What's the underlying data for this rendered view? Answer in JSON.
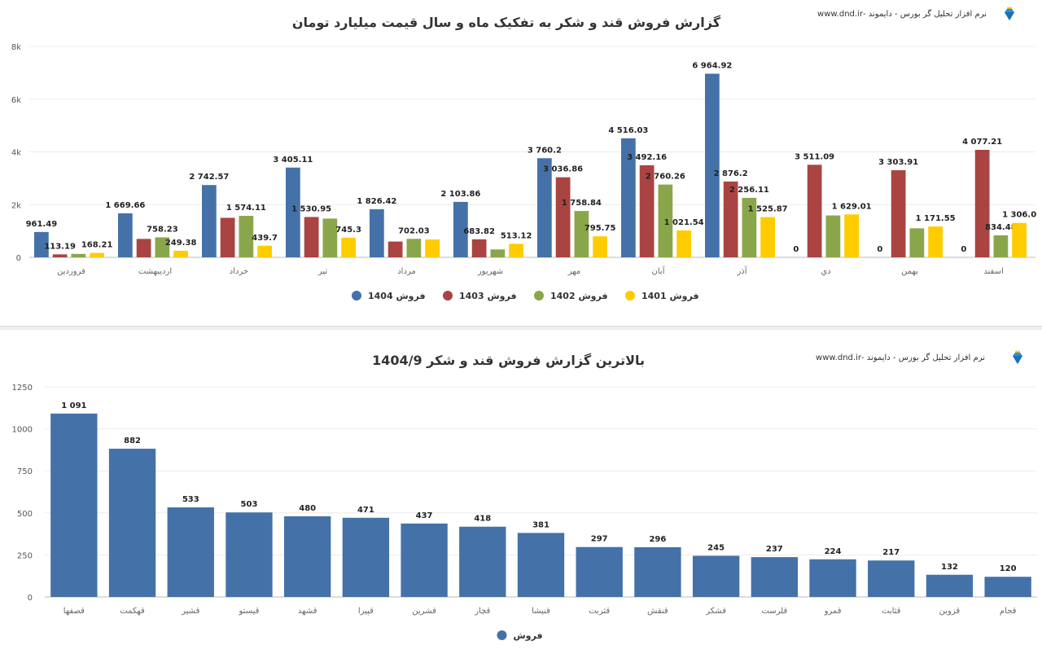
{
  "top": {
    "brand_text": "نرم افزار تحلیل گر بورس - دایموند -www.dnd.ir",
    "chart_data": {
      "type": "bar",
      "title": "گزارش فروش قند و شکر به تفکیک ماه و سال قیمت میلیارد تومان",
      "xlabel": "",
      "ylabel": "",
      "ylim": [
        0,
        8000
      ],
      "yticks": [
        "0",
        "2k",
        "4k",
        "6k",
        "8k"
      ],
      "grid": true,
      "legend_position": "bottom",
      "categories": [
        "فروردین",
        "اردیبهشت",
        "خرداد",
        "تیر",
        "مرداد",
        "شهریور",
        "مهر",
        "آبان",
        "آذر",
        "دي",
        "بهمن",
        "اسفند"
      ],
      "series": [
        {
          "name": "فروش 1404",
          "color": "#4472a8",
          "values": [
            961.49,
            1669.66,
            2742.57,
            3405.11,
            1826.42,
            2103.86,
            3760.2,
            4516.03,
            6964.92,
            0,
            0,
            0
          ],
          "data_labels": [
            "961.49",
            "1 669.66",
            "2 742.57",
            "3 405.11",
            "1 826.42",
            "2 103.86",
            "3 760.2",
            "4 516.03",
            "6 964.92",
            "0",
            "0",
            "0"
          ]
        },
        {
          "name": "فروش 1403",
          "color": "#a94442",
          "values": [
            113.19,
            700,
            1500,
            1530.95,
            600,
            683.82,
            3036.86,
            3492.16,
            2876.2,
            3511.09,
            3303.91,
            4077.21
          ],
          "data_labels": [
            "113.19",
            null,
            null,
            "1 530.95",
            null,
            "683.82",
            "3 036.86",
            "3 492.16",
            "2 876.2",
            "3 511.09",
            "3 303.91",
            "4 077.21"
          ]
        },
        {
          "name": "فروش 1402",
          "color": "#8aa64b",
          "values": [
            130,
            758.23,
            1574.11,
            1470,
            702.03,
            300,
            1758.84,
            2760.26,
            2256.11,
            1590,
            1100,
            834.48
          ],
          "data_labels": [
            null,
            "758.23",
            "1 574.11",
            null,
            "702.03",
            null,
            "1 758.84",
            "2 760.26",
            "2 256.11",
            null,
            null,
            "834.48"
          ]
        },
        {
          "name": "فروش 1401",
          "color": "#ffcc00",
          "values": [
            168.21,
            249.38,
            439.7,
            745.3,
            680,
            513.12,
            795.75,
            1021.54,
            1525.87,
            1629.01,
            1171.55,
            1306.0
          ],
          "data_labels": [
            "168.21",
            "249.38",
            "439.7",
            "745.3",
            null,
            "513.12",
            "795.75",
            "1 021.54",
            "1 525.87",
            "1 629.01",
            "1 171.55",
            "1 306.0"
          ]
        }
      ]
    }
  },
  "bottom": {
    "brand_text": "نرم افزار تحلیل گر بورس - دایموند -www.dnd.ir",
    "chart_data": {
      "type": "bar",
      "title": "بالاترین گزارش فروش قند و شکر 1404/9",
      "xlabel": "",
      "ylabel": "",
      "ylim": [
        0,
        1250
      ],
      "yticks": [
        "0",
        "250",
        "500",
        "750",
        "1000",
        "1250"
      ],
      "grid": true,
      "legend_position": "bottom",
      "categories": [
        "قصفها",
        "قهکمت",
        "قشیر",
        "قیستو",
        "قشهد",
        "قپیرا",
        "قشرین",
        "قچار",
        "قنیشا",
        "قثربت",
        "قنقش",
        "قشکر",
        "قلرست",
        "قمرو",
        "قثابت",
        "قزوین",
        "قجام"
      ],
      "series": [
        {
          "name": "فروش",
          "color": "#4472a8",
          "values": [
            1091,
            882,
            533,
            503,
            480,
            471,
            437,
            418,
            381,
            297,
            296,
            245,
            237,
            224,
            217,
            132,
            120
          ],
          "data_labels": [
            "1 091",
            "882",
            "533",
            "503",
            "480",
            "471",
            "437",
            "418",
            "381",
            "297",
            "296",
            "245",
            "237",
            "224",
            "217",
            "132",
            "120"
          ]
        }
      ]
    }
  }
}
